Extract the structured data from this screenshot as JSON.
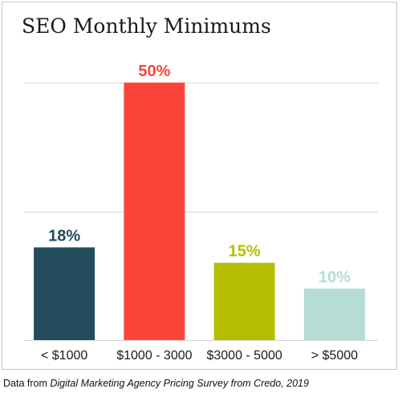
{
  "chart_data": {
    "type": "bar",
    "title": "SEO Monthly Minimums",
    "categories": [
      "< $1000",
      "$1000 - 3000",
      "$3000 - 5000",
      "> $5000"
    ],
    "values": [
      18,
      50,
      15,
      10
    ],
    "value_labels": [
      "18%",
      "50%",
      "15%",
      "10%"
    ],
    "colors": [
      "#234c5c",
      "#fd443a",
      "#b5bd00",
      "#b5ddd6"
    ],
    "ylim": [
      0,
      50
    ],
    "grid": true,
    "legend": "none"
  },
  "source": {
    "prefix": "Data from ",
    "italic": "Digital Marketing Agency Pricing Survey from Credo, 2019"
  }
}
